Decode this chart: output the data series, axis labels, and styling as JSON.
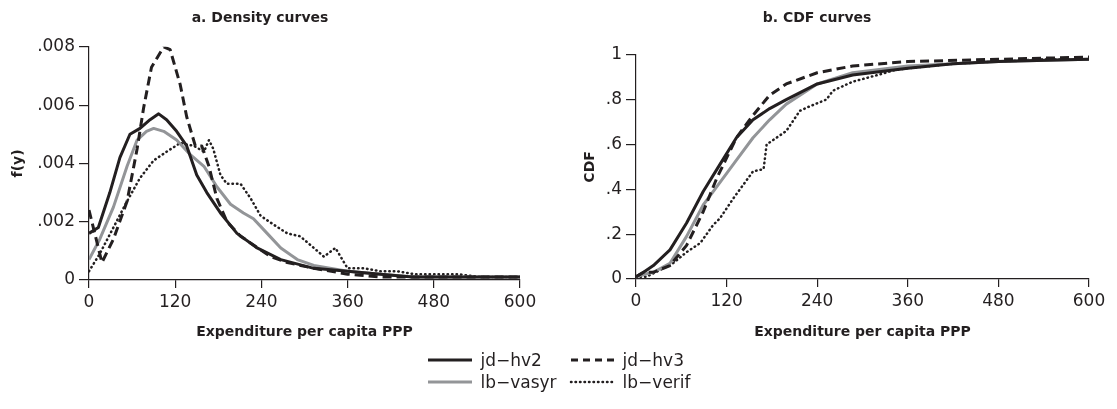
{
  "chart_data": [
    {
      "type": "line",
      "title": "a. Density curves",
      "xlabel": "Expenditure per capita PPP",
      "ylabel": "f(y)",
      "xlim": [
        0,
        600
      ],
      "xticks": [
        0,
        120,
        240,
        360,
        480,
        600
      ],
      "ylim": [
        0,
        0.008
      ],
      "yticks": [
        {
          "value": 0,
          "label": "0"
        },
        {
          "value": 0.002,
          "label": ".002"
        },
        {
          "value": 0.004,
          "label": ".004"
        },
        {
          "value": 0.006,
          "label": ".006"
        },
        {
          "value": 0.008,
          "label": ".008"
        }
      ],
      "grid": false,
      "legend": "bottom",
      "marker": "none",
      "series": [
        {
          "name": "jd−hv2",
          "color": "#231f20",
          "line_style": "solid",
          "x": [
            0,
            13,
            29,
            43,
            57,
            71,
            85,
            97,
            108,
            122,
            136,
            150,
            164,
            183,
            206,
            234,
            267,
            313,
            360,
            406,
            450,
            500,
            600
          ],
          "values": [
            0.0016,
            0.0018,
            0.003,
            0.0042,
            0.005,
            0.0052,
            0.0055,
            0.0057,
            0.0055,
            0.0051,
            0.0046,
            0.0036,
            0.003,
            0.0023,
            0.0016,
            0.0011,
            0.0007,
            0.0004,
            0.0003,
            0.0002,
            0.0001,
            0.0001,
            0.0001
          ]
        },
        {
          "name": "jd−hv3",
          "color": "#231f20",
          "line_style": "dashed",
          "x": [
            0,
            18,
            34,
            53,
            67,
            76,
            87,
            104,
            113,
            127,
            136,
            148,
            157,
            167,
            178,
            192,
            211,
            229,
            253,
            276,
            313,
            360,
            406,
            450,
            500,
            600
          ],
          "values": [
            0.0024,
            0.0006,
            0.0014,
            0.0027,
            0.0045,
            0.0059,
            0.0073,
            0.008,
            0.0079,
            0.0067,
            0.0056,
            0.0046,
            0.0046,
            0.0039,
            0.0028,
            0.002,
            0.0015,
            0.0012,
            0.0008,
            0.0006,
            0.0004,
            0.0002,
            0.0001,
            0.0001,
            0.0001,
            0.0001
          ]
        },
        {
          "name": "lb−vasyr",
          "color": "#939598",
          "line_style": "solid",
          "x": [
            0,
            15,
            34,
            53,
            67,
            80,
            90,
            104,
            122,
            141,
            160,
            178,
            197,
            215,
            229,
            248,
            267,
            290,
            313,
            360,
            406,
            453,
            500,
            600
          ],
          "values": [
            0.0007,
            0.0014,
            0.0025,
            0.0039,
            0.0048,
            0.0051,
            0.0052,
            0.0051,
            0.0048,
            0.0043,
            0.0039,
            0.0032,
            0.0026,
            0.0023,
            0.0021,
            0.0016,
            0.0011,
            0.0007,
            0.0005,
            0.0003,
            0.0002,
            0.0001,
            0.0001,
            0.0001
          ]
        },
        {
          "name": "lb−verif",
          "color": "#231f20",
          "line_style": "dotted",
          "x": [
            0,
            15,
            34,
            53,
            71,
            90,
            108,
            127,
            146,
            160,
            167,
            173,
            183,
            192,
            211,
            225,
            239,
            257,
            276,
            294,
            313,
            327,
            343,
            360,
            383,
            406,
            429,
            453,
            476,
            513,
            546,
            600
          ],
          "values": [
            0.0003,
            0.0009,
            0.0018,
            0.0027,
            0.0035,
            0.0041,
            0.0044,
            0.0047,
            0.0046,
            0.0044,
            0.0048,
            0.0045,
            0.0036,
            0.0033,
            0.0033,
            0.0028,
            0.0022,
            0.0019,
            0.0016,
            0.0015,
            0.0011,
            0.0008,
            0.0011,
            0.0004,
            0.0004,
            0.0003,
            0.0003,
            0.0002,
            0.0002,
            0.0002,
            0.0001,
            0.0001
          ]
        }
      ]
    },
    {
      "type": "line",
      "title": "b. CDF curves",
      "xlabel": "Expenditure per capita PPP",
      "ylabel": "CDF",
      "xlim": [
        0,
        600
      ],
      "xticks": [
        0,
        120,
        240,
        360,
        480,
        600
      ],
      "ylim": [
        0,
        1
      ],
      "yticks": [
        {
          "value": 0,
          "label": "0"
        },
        {
          "value": 0.2,
          "label": ".2"
        },
        {
          "value": 0.4,
          "label": ".4"
        },
        {
          "value": 0.6,
          "label": ".6"
        },
        {
          "value": 0.8,
          "label": ".8"
        },
        {
          "value": 1,
          "label": "1"
        }
      ],
      "grid": false,
      "legend": "bottom",
      "marker": "none",
      "series": [
        {
          "name": "jd−hv2",
          "color": "#231f20",
          "line_style": "solid",
          "x": [
            0,
            10,
            23,
            45,
            67,
            89,
            111,
            133,
            155,
            177,
            199,
            240,
            287,
            360,
            420,
            480,
            600
          ],
          "values": [
            0.01,
            0.03,
            0.06,
            0.13,
            0.25,
            0.39,
            0.51,
            0.63,
            0.71,
            0.76,
            0.8,
            0.87,
            0.91,
            0.94,
            0.96,
            0.97,
            0.98
          ]
        },
        {
          "name": "jd−hv3",
          "color": "#231f20",
          "line_style": "dashed",
          "x": [
            0,
            10,
            23,
            45,
            67,
            89,
            107,
            133,
            155,
            177,
            199,
            240,
            287,
            360,
            480,
            600
          ],
          "values": [
            0.01,
            0.03,
            0.03,
            0.06,
            0.15,
            0.3,
            0.45,
            0.63,
            0.73,
            0.82,
            0.87,
            0.92,
            0.95,
            0.97,
            0.98,
            0.99
          ]
        },
        {
          "name": "lb−vasyr",
          "color": "#939598",
          "line_style": "solid",
          "x": [
            0,
            10,
            23,
            45,
            67,
            89,
            111,
            133,
            155,
            177,
            199,
            240,
            287,
            360,
            480,
            600
          ],
          "values": [
            0.01,
            0.02,
            0.03,
            0.07,
            0.19,
            0.33,
            0.43,
            0.53,
            0.63,
            0.71,
            0.78,
            0.87,
            0.92,
            0.95,
            0.97,
            0.98
          ]
        },
        {
          "name": "lb−verif",
          "color": "#231f20",
          "line_style": "dotted",
          "x": [
            0,
            14,
            32,
            49,
            67,
            85,
            102,
            111,
            129,
            142,
            155,
            169,
            173,
            199,
            217,
            230,
            252,
            261,
            287,
            331,
            340,
            360,
            420,
            480,
            540,
            600
          ],
          "values": [
            0.01,
            0.01,
            0.04,
            0.07,
            0.12,
            0.16,
            0.24,
            0.27,
            0.36,
            0.42,
            0.48,
            0.49,
            0.6,
            0.66,
            0.75,
            0.77,
            0.8,
            0.84,
            0.88,
            0.92,
            0.93,
            0.94,
            0.96,
            0.97,
            0.98,
            0.98
          ]
        }
      ]
    }
  ]
}
